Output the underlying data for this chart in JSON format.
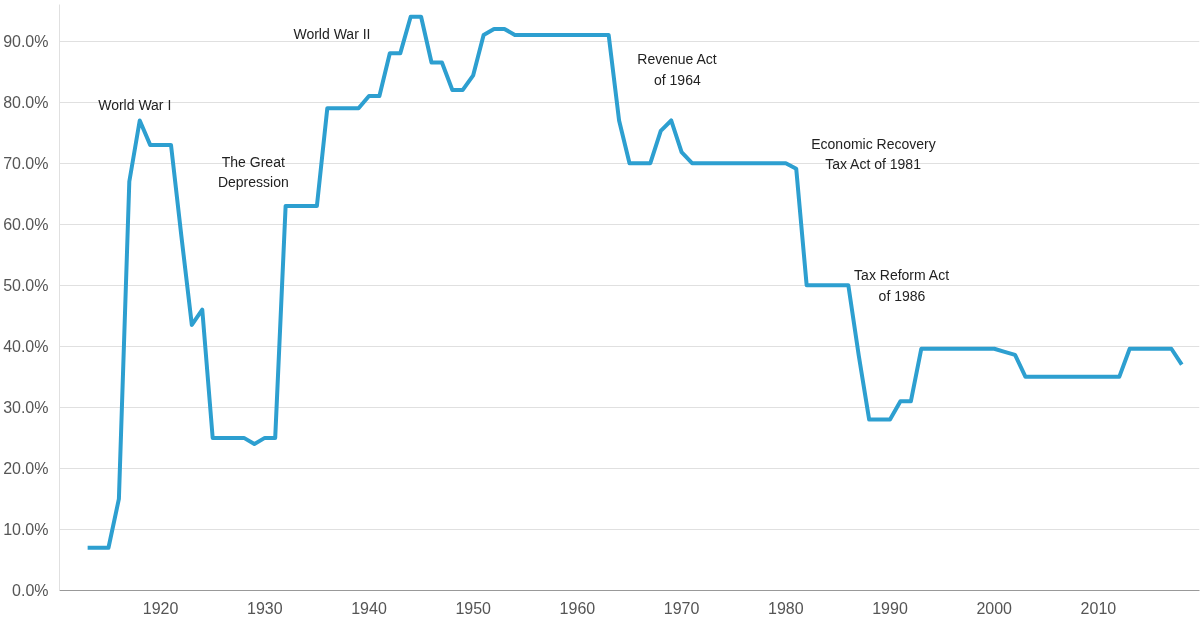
{
  "chart_data": {
    "type": "line",
    "x": [
      1913,
      1914,
      1915,
      1916,
      1917,
      1918,
      1919,
      1920,
      1921,
      1922,
      1923,
      1924,
      1925,
      1926,
      1927,
      1928,
      1929,
      1930,
      1931,
      1932,
      1933,
      1934,
      1935,
      1936,
      1937,
      1938,
      1939,
      1940,
      1941,
      1942,
      1943,
      1944,
      1945,
      1946,
      1947,
      1948,
      1949,
      1950,
      1951,
      1952,
      1953,
      1954,
      1955,
      1956,
      1957,
      1958,
      1959,
      1960,
      1961,
      1962,
      1963,
      1964,
      1965,
      1966,
      1967,
      1968,
      1969,
      1970,
      1971,
      1972,
      1973,
      1974,
      1975,
      1976,
      1977,
      1978,
      1979,
      1980,
      1981,
      1982,
      1983,
      1984,
      1985,
      1986,
      1987,
      1988,
      1989,
      1990,
      1991,
      1992,
      1993,
      1994,
      1995,
      1996,
      1997,
      1998,
      1999,
      2000,
      2001,
      2002,
      2003,
      2004,
      2005,
      2006,
      2007,
      2008,
      2009,
      2010,
      2011,
      2012,
      2013,
      2014,
      2015,
      2016,
      2017,
      2018
    ],
    "series": [
      {
        "color": "#2d9fd0",
        "values": [
          7,
          7,
          7,
          15,
          67,
          77,
          73,
          73,
          73,
          58,
          43.5,
          46,
          25,
          25,
          25,
          25,
          24,
          25,
          25,
          63,
          63,
          63,
          63,
          79,
          79,
          79,
          79,
          81,
          81,
          88,
          88,
          94,
          94,
          86.5,
          86.5,
          82,
          82,
          84.4,
          91,
          92,
          92,
          91,
          91,
          91,
          91,
          91,
          91,
          91,
          91,
          91,
          91,
          77,
          70,
          70,
          70,
          75.3,
          77,
          71.8,
          70,
          70,
          70,
          70,
          70,
          70,
          70,
          70,
          70,
          70,
          69.1,
          50,
          50,
          50,
          50,
          50,
          38.5,
          28,
          28,
          28,
          31,
          31,
          39.6,
          39.6,
          39.6,
          39.6,
          39.6,
          39.6,
          39.6,
          39.6,
          39.1,
          38.6,
          35,
          35,
          35,
          35,
          35,
          35,
          35,
          35,
          35,
          35,
          39.6,
          39.6,
          39.6,
          39.6,
          39.6,
          37
        ]
      }
    ],
    "xlim": [
      1910.3,
      2019.7
    ],
    "xticks": [
      1920,
      1930,
      1940,
      1950,
      1960,
      1970,
      1980,
      1990,
      2000,
      2010
    ],
    "ylim": [
      0,
      96
    ],
    "yticks": [
      {
        "value": 0,
        "label": "0.0%"
      },
      {
        "value": 10,
        "label": "10.0%"
      },
      {
        "value": 20,
        "label": "20.0%"
      },
      {
        "value": 30,
        "label": "30.0%"
      },
      {
        "value": 40,
        "label": "40.0%"
      },
      {
        "value": 50,
        "label": "50.0%"
      },
      {
        "value": 60,
        "label": "60.0%"
      },
      {
        "value": 70,
        "label": "70.0%"
      },
      {
        "value": 80,
        "label": "80.0%"
      },
      {
        "value": 90,
        "label": "90.0%"
      }
    ],
    "grid": "y",
    "marker": "none",
    "line_style": "solid",
    "annotations": [
      "World War I",
      "The Great\nDepression",
      "World War II",
      "Revenue Act\nof 1964",
      "Economic Recovery\nTax Act of 1981",
      "Tax Reform Act\nof 1986"
    ]
  }
}
